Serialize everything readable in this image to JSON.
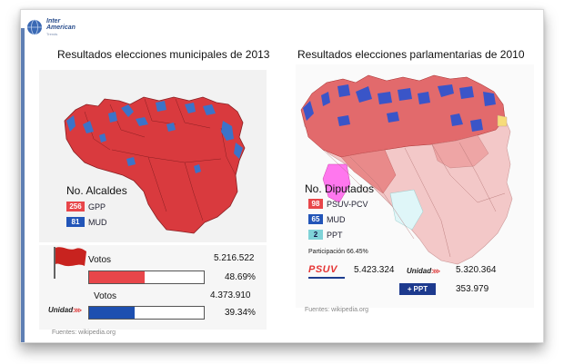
{
  "header": {
    "logo_line1": "Inter",
    "logo_line2": "American",
    "logo_sub": "Trends"
  },
  "left": {
    "title": "Resultados elecciones municipales de 2013",
    "legend_title": "No. Alcaldes",
    "legend": [
      {
        "count": "256",
        "party": "GPP",
        "color": "#e8464a"
      },
      {
        "count": "81",
        "party": "MUD",
        "color": "#2255b8"
      }
    ],
    "votes": [
      {
        "label": "Votos",
        "count": "5.216.522",
        "percent_text": "48.69%",
        "fraction": 0.4869,
        "color": "#e8464a",
        "logo": "psuv-flag"
      },
      {
        "label": "Votos",
        "count": "4.373.910",
        "percent_text": "39.34%",
        "fraction": 0.3934,
        "color": "#1d4fb0",
        "logo": "Unidad"
      }
    ],
    "source": "Fuentes: wikipedia.org"
  },
  "right": {
    "title": "Resultados elecciones parlamentarias de 2010",
    "legend_title": "No. Diputados",
    "legend": [
      {
        "count": "98",
        "party": "PSUV-PCV",
        "color": "#e8464a"
      },
      {
        "count": "65",
        "party": "MUD",
        "color": "#2255b8"
      },
      {
        "count": "2",
        "party": "PPT",
        "color": "#7fd3d8"
      }
    ],
    "participation": "Participación 66.45%",
    "votes": [
      {
        "party_logo": "PSUV",
        "count": "5.423.324"
      },
      {
        "party_logo": "Unidad",
        "count": "5.320.364"
      },
      {
        "party_logo": "PPT",
        "count": "353.979"
      }
    ],
    "source": "Fuentes: wikipedia.org"
  }
}
